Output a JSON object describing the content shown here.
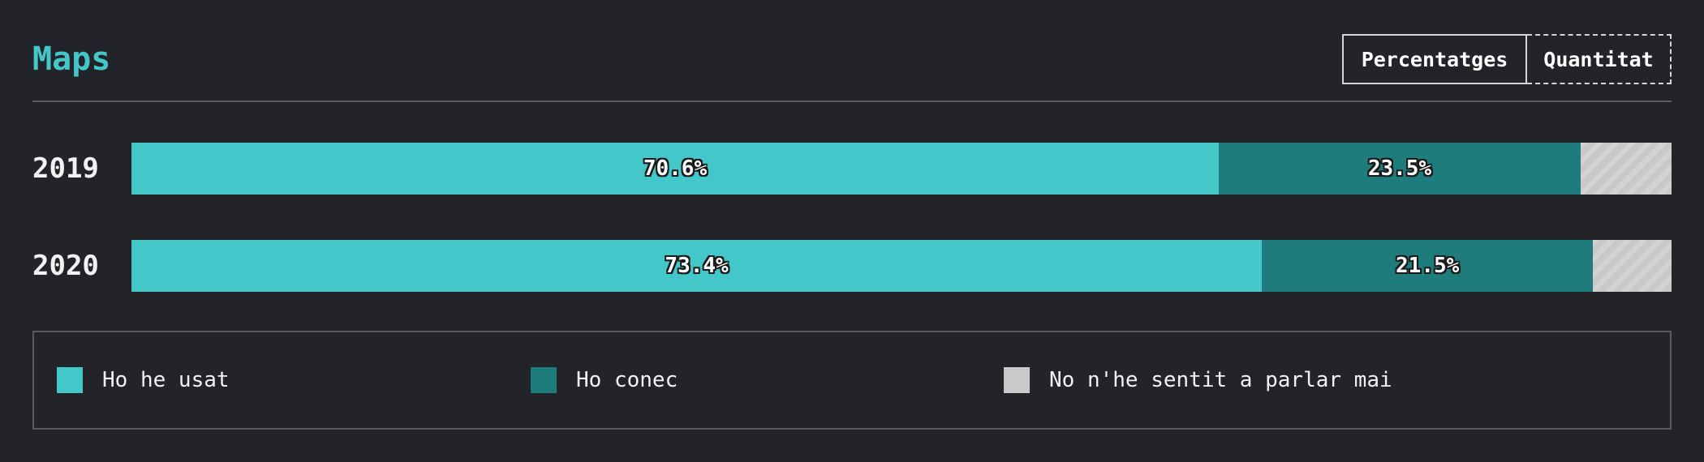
{
  "header": {
    "title": "Maps",
    "toggle": {
      "percent_label": "Percentatges",
      "count_label": "Quantitat"
    }
  },
  "colors": {
    "used": "#43c7c8",
    "known": "#1e7c7c",
    "never": "#c9c9c9",
    "background": "#232429"
  },
  "chart_data": {
    "type": "bar",
    "orientation": "horizontal",
    "stacked": true,
    "categories": [
      "2019",
      "2020"
    ],
    "series": [
      {
        "name": "Ho he usat",
        "values": [
          70.6,
          73.4
        ],
        "labels": [
          "70.6%",
          "73.4%"
        ]
      },
      {
        "name": "Ho conec",
        "values": [
          23.5,
          21.5
        ],
        "labels": [
          "23.5%",
          "21.5%"
        ]
      },
      {
        "name": "No n'he sentit a parlar mai",
        "values": [
          5.9,
          5.1
        ],
        "labels": [
          "",
          ""
        ]
      }
    ],
    "xlim": [
      0,
      100
    ],
    "legend_position": "bottom"
  },
  "legend": {
    "items": [
      {
        "label": "Ho he usat"
      },
      {
        "label": "Ho conec"
      },
      {
        "label": "No n'he sentit a parlar mai"
      }
    ]
  }
}
